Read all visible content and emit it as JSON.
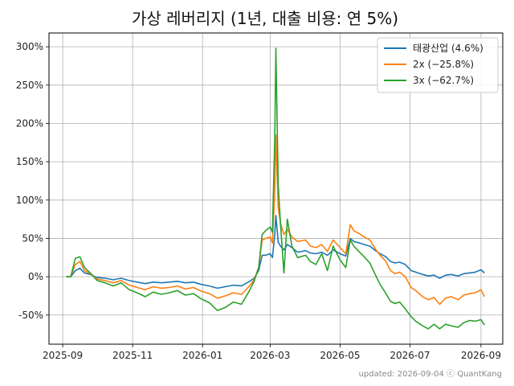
{
  "chart_data": {
    "type": "line",
    "title": "가상 레버리지 (1년, 대출 비용: 연 5%)",
    "xlabel": "",
    "ylabel": "",
    "x_ticks": [
      "2025-09",
      "2025-11",
      "2026-01",
      "2026-03",
      "2026-05",
      "2026-07",
      "2026-09"
    ],
    "y_ticks": [
      "-50%",
      "0%",
      "50%",
      "100%",
      "150%",
      "200%",
      "250%",
      "300%"
    ],
    "xlim": [
      "2025-08-20",
      "2026-09-20"
    ],
    "ylim": [
      -88,
      318
    ],
    "grid": true,
    "legend_position": "top-right",
    "footer": "updated: 2026-09-04 ⓒ QuantKang",
    "colors": {
      "1x": "#1f77b4",
      "2x": "#ff7f0e",
      "3x": "#2ca02c"
    },
    "series": [
      {
        "name": "태광산업 (4.6%)",
        "key": "1x",
        "color": "#1f77b4",
        "points": [
          [
            "2025-09-04",
            0
          ],
          [
            "2025-09-08",
            0
          ],
          [
            "2025-09-12",
            8
          ],
          [
            "2025-09-16",
            11
          ],
          [
            "2025-09-20",
            5
          ],
          [
            "2025-09-25",
            3
          ],
          [
            "2025-10-01",
            -1
          ],
          [
            "2025-10-08",
            -2
          ],
          [
            "2025-10-15",
            -4
          ],
          [
            "2025-10-22",
            -2
          ],
          [
            "2025-10-29",
            -5
          ],
          [
            "2025-11-05",
            -7
          ],
          [
            "2025-11-12",
            -9
          ],
          [
            "2025-11-19",
            -7
          ],
          [
            "2025-11-26",
            -8
          ],
          [
            "2025-12-03",
            -7
          ],
          [
            "2025-12-10",
            -6
          ],
          [
            "2025-12-17",
            -8
          ],
          [
            "2025-12-24",
            -7
          ],
          [
            "2025-12-31",
            -10
          ],
          [
            "2026-01-07",
            -12
          ],
          [
            "2026-01-14",
            -15
          ],
          [
            "2026-01-21",
            -13
          ],
          [
            "2026-01-28",
            -11
          ],
          [
            "2026-02-04",
            -12
          ],
          [
            "2026-02-11",
            -6
          ],
          [
            "2026-02-15",
            -2
          ],
          [
            "2026-02-19",
            8
          ],
          [
            "2026-02-22",
            28
          ],
          [
            "2026-02-25",
            28
          ],
          [
            "2026-03-01",
            30
          ],
          [
            "2026-03-03",
            25
          ],
          [
            "2026-03-05",
            55
          ],
          [
            "2026-03-06",
            80
          ],
          [
            "2026-03-08",
            45
          ],
          [
            "2026-03-10",
            40
          ],
          [
            "2026-03-13",
            35
          ],
          [
            "2026-03-16",
            42
          ],
          [
            "2026-03-20",
            38
          ],
          [
            "2026-03-25",
            32
          ],
          [
            "2026-04-01",
            34
          ],
          [
            "2026-04-05",
            31
          ],
          [
            "2026-04-10",
            30
          ],
          [
            "2026-04-15",
            32
          ],
          [
            "2026-04-20",
            28
          ],
          [
            "2026-04-25",
            35
          ],
          [
            "2026-05-01",
            30
          ],
          [
            "2026-05-06",
            27
          ],
          [
            "2026-05-10",
            50
          ],
          [
            "2026-05-13",
            46
          ],
          [
            "2026-05-18",
            44
          ],
          [
            "2026-05-22",
            42
          ],
          [
            "2026-05-27",
            40
          ],
          [
            "2026-06-01",
            34
          ],
          [
            "2026-06-05",
            30
          ],
          [
            "2026-06-10",
            26
          ],
          [
            "2026-06-14",
            20
          ],
          [
            "2026-06-18",
            18
          ],
          [
            "2026-06-22",
            19
          ],
          [
            "2026-06-27",
            16
          ],
          [
            "2026-07-02",
            8
          ],
          [
            "2026-07-06",
            6
          ],
          [
            "2026-07-12",
            3
          ],
          [
            "2026-07-17",
            1
          ],
          [
            "2026-07-22",
            2
          ],
          [
            "2026-07-27",
            -2
          ],
          [
            "2026-08-01",
            2
          ],
          [
            "2026-08-06",
            3
          ],
          [
            "2026-08-12",
            1
          ],
          [
            "2026-08-17",
            4
          ],
          [
            "2026-08-22",
            5
          ],
          [
            "2026-08-27",
            6
          ],
          [
            "2026-09-01",
            9
          ],
          [
            "2026-09-04",
            5
          ]
        ]
      },
      {
        "name": "2x (−25.8%)",
        "key": "2x",
        "color": "#ff7f0e",
        "points": [
          [
            "2025-09-04",
            0
          ],
          [
            "2025-09-08",
            0
          ],
          [
            "2025-09-12",
            16
          ],
          [
            "2025-09-16",
            20
          ],
          [
            "2025-09-20",
            8
          ],
          [
            "2025-09-25",
            4
          ],
          [
            "2025-10-01",
            -3
          ],
          [
            "2025-10-08",
            -5
          ],
          [
            "2025-10-15",
            -8
          ],
          [
            "2025-10-22",
            -5
          ],
          [
            "2025-10-29",
            -11
          ],
          [
            "2025-11-05",
            -14
          ],
          [
            "2025-11-12",
            -17
          ],
          [
            "2025-11-19",
            -13
          ],
          [
            "2025-11-26",
            -15
          ],
          [
            "2025-12-03",
            -14
          ],
          [
            "2025-12-10",
            -12
          ],
          [
            "2025-12-17",
            -16
          ],
          [
            "2025-12-24",
            -14
          ],
          [
            "2025-12-31",
            -19
          ],
          [
            "2026-01-07",
            -22
          ],
          [
            "2026-01-14",
            -28
          ],
          [
            "2026-01-21",
            -25
          ],
          [
            "2026-01-28",
            -21
          ],
          [
            "2026-02-04",
            -23
          ],
          [
            "2026-02-11",
            -12
          ],
          [
            "2026-02-15",
            -4
          ],
          [
            "2026-02-19",
            12
          ],
          [
            "2026-02-22",
            48
          ],
          [
            "2026-02-25",
            50
          ],
          [
            "2026-03-01",
            52
          ],
          [
            "2026-03-03",
            44
          ],
          [
            "2026-03-05",
            110
          ],
          [
            "2026-03-06",
            185
          ],
          [
            "2026-03-08",
            90
          ],
          [
            "2026-03-10",
            70
          ],
          [
            "2026-03-13",
            55
          ],
          [
            "2026-03-16",
            62
          ],
          [
            "2026-03-20",
            52
          ],
          [
            "2026-03-25",
            46
          ],
          [
            "2026-04-01",
            48
          ],
          [
            "2026-04-05",
            40
          ],
          [
            "2026-04-10",
            38
          ],
          [
            "2026-04-15",
            42
          ],
          [
            "2026-04-20",
            33
          ],
          [
            "2026-04-25",
            48
          ],
          [
            "2026-05-01",
            38
          ],
          [
            "2026-05-06",
            30
          ],
          [
            "2026-05-10",
            68
          ],
          [
            "2026-05-13",
            60
          ],
          [
            "2026-05-18",
            56
          ],
          [
            "2026-05-22",
            52
          ],
          [
            "2026-05-27",
            48
          ],
          [
            "2026-06-01",
            36
          ],
          [
            "2026-06-05",
            28
          ],
          [
            "2026-06-10",
            20
          ],
          [
            "2026-06-14",
            8
          ],
          [
            "2026-06-18",
            4
          ],
          [
            "2026-06-22",
            6
          ],
          [
            "2026-06-27",
            0
          ],
          [
            "2026-07-02",
            -14
          ],
          [
            "2026-07-06",
            -18
          ],
          [
            "2026-07-12",
            -26
          ],
          [
            "2026-07-17",
            -30
          ],
          [
            "2026-07-22",
            -27
          ],
          [
            "2026-07-27",
            -36
          ],
          [
            "2026-08-01",
            -28
          ],
          [
            "2026-08-06",
            -26
          ],
          [
            "2026-08-12",
            -30
          ],
          [
            "2026-08-17",
            -24
          ],
          [
            "2026-08-22",
            -22
          ],
          [
            "2026-08-27",
            -21
          ],
          [
            "2026-09-01",
            -17
          ],
          [
            "2026-09-04",
            -26
          ]
        ]
      },
      {
        "name": "3x (−62.7%)",
        "key": "3x",
        "color": "#2ca02c",
        "points": [
          [
            "2025-09-04",
            0
          ],
          [
            "2025-09-08",
            0
          ],
          [
            "2025-09-12",
            24
          ],
          [
            "2025-09-16",
            26
          ],
          [
            "2025-09-20",
            12
          ],
          [
            "2025-09-25",
            5
          ],
          [
            "2025-10-01",
            -5
          ],
          [
            "2025-10-08",
            -8
          ],
          [
            "2025-10-15",
            -12
          ],
          [
            "2025-10-22",
            -8
          ],
          [
            "2025-10-29",
            -17
          ],
          [
            "2025-11-05",
            -21
          ],
          [
            "2025-11-12",
            -26
          ],
          [
            "2025-11-19",
            -20
          ],
          [
            "2025-11-26",
            -23
          ],
          [
            "2025-12-03",
            -21
          ],
          [
            "2025-12-10",
            -18
          ],
          [
            "2025-12-17",
            -24
          ],
          [
            "2025-12-24",
            -22
          ],
          [
            "2025-12-31",
            -29
          ],
          [
            "2026-01-07",
            -34
          ],
          [
            "2026-01-14",
            -44
          ],
          [
            "2026-01-21",
            -40
          ],
          [
            "2026-01-28",
            -33
          ],
          [
            "2026-02-04",
            -36
          ],
          [
            "2026-02-11",
            -18
          ],
          [
            "2026-02-15",
            -6
          ],
          [
            "2026-02-19",
            12
          ],
          [
            "2026-02-22",
            55
          ],
          [
            "2026-02-25",
            60
          ],
          [
            "2026-03-01",
            65
          ],
          [
            "2026-03-03",
            58
          ],
          [
            "2026-03-05",
            180
          ],
          [
            "2026-03-06",
            298
          ],
          [
            "2026-03-08",
            120
          ],
          [
            "2026-03-10",
            70
          ],
          [
            "2026-03-13",
            5
          ],
          [
            "2026-03-16",
            75
          ],
          [
            "2026-03-20",
            40
          ],
          [
            "2026-03-25",
            25
          ],
          [
            "2026-04-01",
            28
          ],
          [
            "2026-04-05",
            20
          ],
          [
            "2026-04-10",
            16
          ],
          [
            "2026-04-15",
            30
          ],
          [
            "2026-04-20",
            8
          ],
          [
            "2026-04-25",
            40
          ],
          [
            "2026-05-01",
            22
          ],
          [
            "2026-05-06",
            12
          ],
          [
            "2026-05-10",
            48
          ],
          [
            "2026-05-13",
            40
          ],
          [
            "2026-05-18",
            32
          ],
          [
            "2026-05-22",
            26
          ],
          [
            "2026-05-27",
            18
          ],
          [
            "2026-06-01",
            2
          ],
          [
            "2026-06-05",
            -10
          ],
          [
            "2026-06-10",
            -22
          ],
          [
            "2026-06-14",
            -32
          ],
          [
            "2026-06-18",
            -35
          ],
          [
            "2026-06-22",
            -33
          ],
          [
            "2026-06-27",
            -42
          ],
          [
            "2026-07-02",
            -52
          ],
          [
            "2026-07-06",
            -58
          ],
          [
            "2026-07-12",
            -64
          ],
          [
            "2026-07-17",
            -68
          ],
          [
            "2026-07-22",
            -62
          ],
          [
            "2026-07-27",
            -68
          ],
          [
            "2026-08-01",
            -62
          ],
          [
            "2026-08-06",
            -64
          ],
          [
            "2026-08-12",
            -66
          ],
          [
            "2026-08-17",
            -60
          ],
          [
            "2026-08-22",
            -57
          ],
          [
            "2026-08-27",
            -58
          ],
          [
            "2026-09-01",
            -56
          ],
          [
            "2026-09-04",
            -63
          ]
        ]
      }
    ]
  }
}
